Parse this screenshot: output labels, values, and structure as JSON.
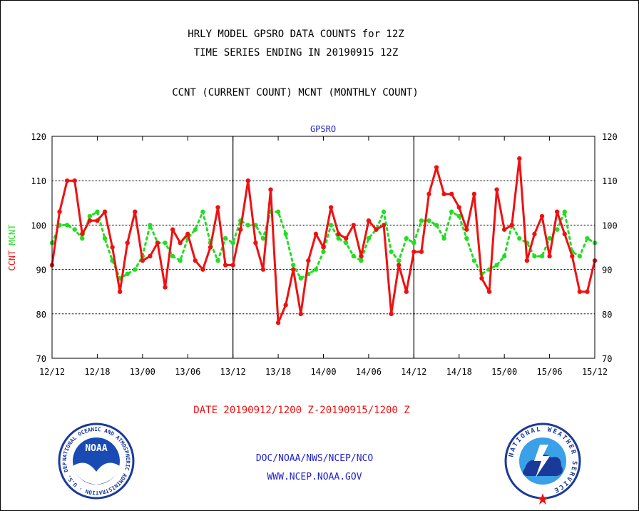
{
  "header": {
    "line1": "HRLY MODEL GPSRO DATA COUNTS for 12Z",
    "line2": "TIME SERIES ENDING IN 20190915 12Z",
    "line3": "CCNT (CURRENT COUNT) MCNT (MONTHLY COUNT)"
  },
  "footer": {
    "date_range": "DATE 20190912/1200 Z-20190915/1200 Z",
    "org": "DOC/NOAA/NWS/NCEP/NCO",
    "url": "WWW.NCEP.NOAA.GOV"
  },
  "logos": {
    "noaa_text": "NOAA",
    "noaa_ring": "NATIONAL OCEANIC AND ATMOSPHERIC ADMINISTRATION · U.S. DEPARTMENT OF COMMERCE ·",
    "nws_ring": "NATIONAL WEATHER SERVICE"
  },
  "colors": {
    "ccnt": "#ee1111",
    "mcnt": "#22dd22",
    "text": "#000000",
    "blue_text": "#2222cc",
    "red_text": "#ee1111"
  },
  "chart_data": {
    "type": "line",
    "title": "GPSRO",
    "ylabel_left": [
      {
        "text": "CCNT",
        "color": "#ee1111"
      },
      {
        "text": "MCNT",
        "color": "#22dd22"
      }
    ],
    "ylim": [
      70,
      120
    ],
    "yticks": [
      70,
      80,
      90,
      100,
      110,
      120
    ],
    "xlim": [
      0,
      72
    ],
    "xticks": [
      {
        "x": 0,
        "label": "12/12"
      },
      {
        "x": 6,
        "label": "12/18"
      },
      {
        "x": 12,
        "label": "13/00"
      },
      {
        "x": 18,
        "label": "13/06"
      },
      {
        "x": 24,
        "label": "13/12"
      },
      {
        "x": 30,
        "label": "13/18"
      },
      {
        "x": 36,
        "label": "14/00"
      },
      {
        "x": 42,
        "label": "14/06"
      },
      {
        "x": 48,
        "label": "14/12"
      },
      {
        "x": 54,
        "label": "14/18"
      },
      {
        "x": 60,
        "label": "15/00"
      },
      {
        "x": 66,
        "label": "15/06"
      },
      {
        "x": 72,
        "label": "15/12"
      }
    ],
    "day_dividers": [
      24,
      48
    ],
    "grid": true,
    "series": [
      {
        "name": "CCNT",
        "style": "solid",
        "values": [
          91,
          103,
          110,
          110,
          98,
          101,
          101,
          103,
          95,
          85,
          96,
          103,
          92,
          93,
          96,
          86,
          99,
          96,
          98,
          92,
          90,
          95,
          104,
          91,
          91,
          99,
          110,
          96,
          90,
          108,
          78,
          82,
          90,
          80,
          92,
          98,
          95,
          104,
          98,
          97,
          100,
          93,
          101,
          99,
          100,
          80,
          91,
          85,
          94,
          94,
          107,
          113,
          107,
          107,
          104,
          99,
          107,
          88,
          85,
          108,
          99,
          100,
          115,
          92,
          98,
          102,
          93,
          103,
          98,
          93,
          85,
          85,
          92
        ]
      },
      {
        "name": "MCNT",
        "style": "dotted",
        "values": [
          96,
          100,
          100,
          99,
          97,
          102,
          103,
          97,
          92,
          88,
          89,
          90,
          93,
          100,
          96,
          96,
          93,
          92,
          97,
          99,
          103,
          96,
          92,
          97,
          96,
          101,
          100,
          100,
          97,
          103,
          103,
          98,
          91,
          88,
          89,
          90,
          94,
          100,
          97,
          96,
          93,
          92,
          97,
          99,
          103,
          94,
          92,
          97,
          96,
          101,
          101,
          100,
          97,
          103,
          102,
          97,
          92,
          89,
          90,
          91,
          93,
          100,
          97,
          96,
          93,
          93,
          97,
          99,
          103,
          94,
          93,
          97,
          96
        ]
      }
    ]
  }
}
